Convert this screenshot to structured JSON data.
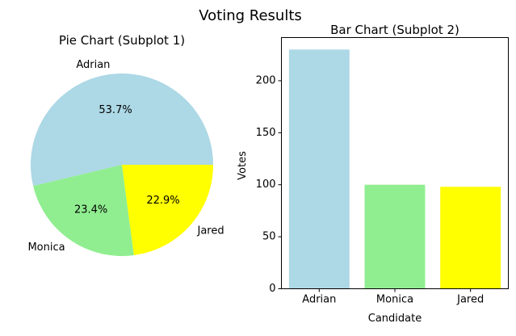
{
  "figure": {
    "suptitle": "Voting Results"
  },
  "chart_data": [
    {
      "type": "pie",
      "title": "Pie Chart (Subplot 1)",
      "labels": [
        "Adrian",
        "Monica",
        "Jared"
      ],
      "values": [
        230,
        100,
        98
      ],
      "percent_labels": [
        "53.7%",
        "23.4%",
        "22.9%"
      ],
      "colors": [
        "#add8e6",
        "#90ee90",
        "#ffff00"
      ],
      "start_angle_deg": 0,
      "direction": "counterclockwise"
    },
    {
      "type": "bar",
      "title": "Bar Chart (Subplot 2)",
      "categories": [
        "Adrian",
        "Monica",
        "Jared"
      ],
      "values": [
        230,
        100,
        98
      ],
      "colors": [
        "#add8e6",
        "#90ee90",
        "#ffff00"
      ],
      "xlabel": "Candidate",
      "ylabel": "Votes",
      "ylim": [
        0,
        241.5
      ],
      "yticks": [
        0,
        50,
        100,
        150,
        200
      ],
      "grid": false
    }
  ]
}
